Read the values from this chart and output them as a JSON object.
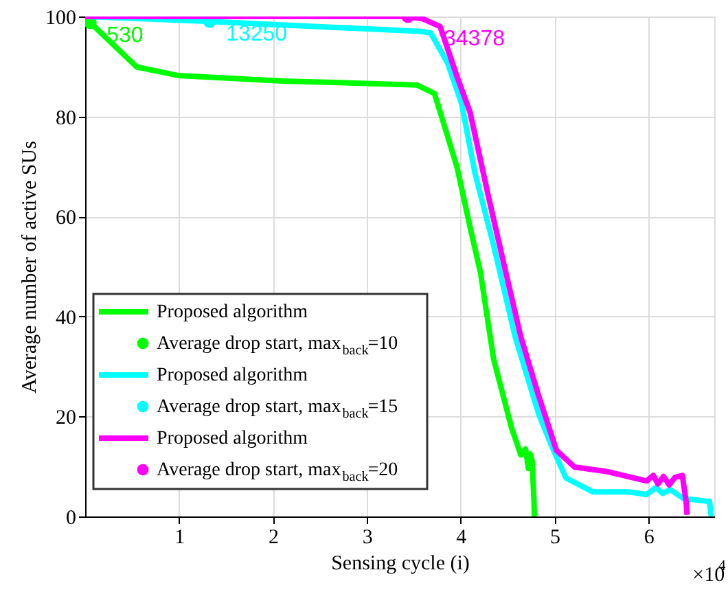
{
  "chart_data": {
    "type": "line",
    "xlabel": "Sensing cycle (i)",
    "ylabel": "Average number of active SUs",
    "xlim": [
      0,
      6.7
    ],
    "ylim": [
      0,
      100
    ],
    "xticks": [
      1,
      2,
      3,
      4,
      5,
      6
    ],
    "yticks": [
      0,
      20,
      40,
      60,
      80,
      100
    ],
    "grid": true,
    "legend": "bottom left",
    "line_style": "solid",
    "annotations": [
      {
        "text": "530",
        "x": 0.053,
        "y": 98.8
      },
      {
        "text": "13250",
        "x": 1.325,
        "y": 99
      },
      {
        "text": "34378",
        "x": 3.4378,
        "y": 100
      },
      "×10$^{4}$"
    ],
    "series": [
      {
        "name": "Proposed algorithm",
        "color": "#00ff00",
        "x": [
          0,
          0.053,
          0.32,
          0.55,
          0.99,
          2.1,
          3.53,
          3.72,
          3.96,
          4.1,
          4.21,
          4.35,
          4.54,
          4.64,
          4.69,
          4.72,
          4.74,
          4.76,
          4.78,
          4.785
        ],
        "values": [
          99.5,
          98.8,
          94,
          89.9,
          88.2,
          87.1,
          86.3,
          84.6,
          69.9,
          57.8,
          48.8,
          31.5,
          17.8,
          12.3,
          13.5,
          9.6,
          12.5,
          11.2,
          3,
          0
        ]
      },
      {
        "name": "Average drop start, max$_{back}$=10",
        "type": "scatter",
        "color": "#00ff00",
        "x": [
          0.053
        ],
        "values": [
          98.8
        ]
      },
      {
        "name": "Proposed algorithm",
        "color": "#00ffff",
        "x": [
          0,
          1.325,
          3.58,
          3.68,
          3.86,
          4.01,
          4.15,
          4.35,
          4.58,
          4.83,
          4.97,
          5.12,
          5.41,
          5.79,
          5.98,
          6.08,
          6.15,
          6.23,
          6.37,
          6.65,
          6.66,
          6.67
        ],
        "values": [
          100,
          99,
          97,
          96.7,
          90.7,
          82.5,
          68.8,
          54.2,
          35.9,
          20.5,
          14,
          7.7,
          4.9,
          4.9,
          4.4,
          5.8,
          4.6,
          5.4,
          3.6,
          3,
          1,
          0
        ]
      },
      {
        "name": "Average drop start, max$_{back}$=15",
        "type": "scatter",
        "color": "#00ffff",
        "x": [
          1.325
        ],
        "values": [
          99
        ]
      },
      {
        "name": "Proposed algorithm",
        "color": "#ff00ff",
        "x": [
          0,
          3.4378,
          3.6,
          3.78,
          3.96,
          4.1,
          4.29,
          4.47,
          4.64,
          4.83,
          5.02,
          5.21,
          5.55,
          5.98,
          6.05,
          6.1,
          6.16,
          6.22,
          6.28,
          6.36,
          6.4,
          6.41
        ],
        "values": [
          100,
          100,
          99.5,
          98,
          88,
          80.8,
          64.4,
          49.6,
          35.9,
          24.1,
          13.2,
          9.9,
          9,
          7.1,
          8.2,
          6.5,
          8,
          6.3,
          7.8,
          8.2,
          3,
          0.3
        ]
      },
      {
        "name": "Average drop start, max$_{back}$=20",
        "type": "scatter",
        "color": "#ff00ff",
        "x": [
          3.4378
        ],
        "values": [
          100
        ]
      }
    ]
  }
}
